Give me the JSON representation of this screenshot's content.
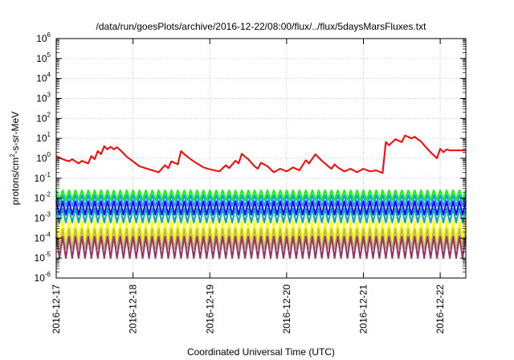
{
  "chart_data": {
    "type": "line",
    "title": "/data/run/goesPlots/archive/2016-12-22/08:00/flux/../flux/5daysMarsFluxes.txt",
    "xlabel": "Coordinated Universal Time (UTC)",
    "ylabel": "protons/cm2-s-sr-MeV",
    "y_scale": "log",
    "ylim": [
      1e-06,
      1000000.0
    ],
    "y_ticks": [
      {
        "base": "10",
        "exp": "-6"
      },
      {
        "base": "10",
        "exp": "-5"
      },
      {
        "base": "10",
        "exp": "-4"
      },
      {
        "base": "10",
        "exp": "-3"
      },
      {
        "base": "10",
        "exp": "-2"
      },
      {
        "base": "10",
        "exp": "-1"
      },
      {
        "base": "10",
        "exp": "0"
      },
      {
        "base": "10",
        "exp": "1"
      },
      {
        "base": "10",
        "exp": "2"
      },
      {
        "base": "10",
        "exp": "3"
      },
      {
        "base": "10",
        "exp": "4"
      },
      {
        "base": "10",
        "exp": "5"
      },
      {
        "base": "10",
        "exp": "6"
      }
    ],
    "xlim": [
      "2016-12-17 00:00",
      "2016-12-22 08:00"
    ],
    "x_ticks": [
      "2016-12-17",
      "2016-12-18",
      "2016-12-19",
      "2016-12-20",
      "2016-12-21",
      "2016-12-22"
    ],
    "grid": true,
    "legend": "none",
    "series": [
      {
        "color": "#ff0000",
        "x": [
          "2016-12-17 00:00",
          "2016-12-17 02:00",
          "2016-12-17 04:00",
          "2016-12-17 05:00",
          "2016-12-17 07:00",
          "2016-12-17 08:00",
          "2016-12-17 10:00",
          "2016-12-17 11:00",
          "2016-12-17 12:00",
          "2016-12-17 13:00",
          "2016-12-17 14:00",
          "2016-12-17 15:00",
          "2016-12-17 16:00",
          "2016-12-17 17:00",
          "2016-12-17 18:00",
          "2016-12-17 19:00",
          "2016-12-17 20:00",
          "2016-12-17 21:00",
          "2016-12-17 22:00",
          "2016-12-18 00:00",
          "2016-12-18 02:00",
          "2016-12-18 05:00",
          "2016-12-18 08:00",
          "2016-12-18 10:00",
          "2016-12-18 11:00",
          "2016-12-18 12:00",
          "2016-12-18 14:00",
          "2016-12-18 15:00",
          "2016-12-18 16:00",
          "2016-12-18 17:00",
          "2016-12-18 18:00",
          "2016-12-18 20:00",
          "2016-12-18 22:00",
          "2016-12-19 00:00",
          "2016-12-19 03:00",
          "2016-12-19 05:00",
          "2016-12-19 06:00",
          "2016-12-19 08:00",
          "2016-12-19 09:00",
          "2016-12-19 10:00",
          "2016-12-19 11:00",
          "2016-12-19 12:00",
          "2016-12-19 13:00",
          "2016-12-19 14:00",
          "2016-12-19 15:00",
          "2016-12-19 16:00",
          "2016-12-19 18:00",
          "2016-12-19 20:00",
          "2016-12-19 22:00",
          "2016-12-20 00:00",
          "2016-12-20 02:00",
          "2016-12-20 04:00",
          "2016-12-20 06:00",
          "2016-12-20 07:00",
          "2016-12-20 09:00",
          "2016-12-20 10:00",
          "2016-12-20 11:00",
          "2016-12-20 12:00",
          "2016-12-20 13:00",
          "2016-12-20 14:00",
          "2016-12-20 15:00",
          "2016-12-20 16:00",
          "2016-12-20 18:00",
          "2016-12-20 20:00",
          "2016-12-20 22:00",
          "2016-12-21 00:00",
          "2016-12-21 02:00",
          "2016-12-21 04:00",
          "2016-12-21 06:00",
          "2016-12-21 07:00",
          "2016-12-21 08:00",
          "2016-12-21 10:00",
          "2016-12-21 12:00",
          "2016-12-21 13:00",
          "2016-12-21 15:00",
          "2016-12-21 16:00",
          "2016-12-21 17:00",
          "2016-12-21 18:00",
          "2016-12-21 19:00",
          "2016-12-21 20:00",
          "2016-12-21 21:00",
          "2016-12-21 22:00",
          "2016-12-21 23:00",
          "2016-12-22 00:00",
          "2016-12-22 01:00",
          "2016-12-22 02:00",
          "2016-12-22 03:00",
          "2016-12-22 04:00",
          "2016-12-22 05:00",
          "2016-12-22 06:00",
          "2016-12-22 07:00",
          "2016-12-22 08:00"
        ],
        "y": [
          1.3,
          0.9,
          0.7,
          0.9,
          0.55,
          0.75,
          0.55,
          1.3,
          0.9,
          2.3,
          1.6,
          4.0,
          2.8,
          3.8,
          2.8,
          3.6,
          2.6,
          1.8,
          1.2,
          0.7,
          0.4,
          0.28,
          0.2,
          0.45,
          0.32,
          0.7,
          0.5,
          2.3,
          1.6,
          1.2,
          0.9,
          0.55,
          0.35,
          0.28,
          0.22,
          0.45,
          0.32,
          0.75,
          0.55,
          1.7,
          1.2,
          0.9,
          0.6,
          0.4,
          0.3,
          0.6,
          0.4,
          0.2,
          0.3,
          0.22,
          0.35,
          0.25,
          0.8,
          0.55,
          1.6,
          1.1,
          0.75,
          0.55,
          0.4,
          0.3,
          0.5,
          0.35,
          0.22,
          0.3,
          0.2,
          0.3,
          0.22,
          0.25,
          0.18,
          6.5,
          4.5,
          9.0,
          6.5,
          14.0,
          10.0,
          12.0,
          9.0,
          7.0,
          4.5,
          3.0,
          2.0,
          1.4,
          1.0,
          3.0,
          2.0,
          2.8,
          2.5,
          2.5,
          2.5,
          2.5,
          2.5,
          2.5
        ]
      },
      {
        "color": "#00ff00",
        "sawtooth": {
          "period_hours": 2,
          "y_low": 0.008,
          "y_high": 0.025
        }
      },
      {
        "color": "#1e90ff",
        "sawtooth": {
          "period_hours": 2,
          "y_low": 0.004,
          "y_high": 0.014
        }
      },
      {
        "color": "#0000ff",
        "sawtooth": {
          "period_hours": 2,
          "y_low": 0.0015,
          "y_high": 0.007
        }
      },
      {
        "color": "#00aaaa",
        "sawtooth": {
          "period_hours": 2,
          "y_low": 0.0006,
          "y_high": 0.003
        }
      },
      {
        "color": "#ffff00",
        "sawtooth": {
          "period_hours": 2,
          "y_low": 8e-05,
          "y_high": 0.0008
        }
      },
      {
        "color": "#bdb76b",
        "sawtooth": {
          "period_hours": 2,
          "y_low": 3e-05,
          "y_high": 0.0003
        }
      },
      {
        "color": "#993366",
        "sawtooth": {
          "period_hours": 2,
          "y_low": 1e-05,
          "y_high": 0.00012
        }
      }
    ]
  }
}
